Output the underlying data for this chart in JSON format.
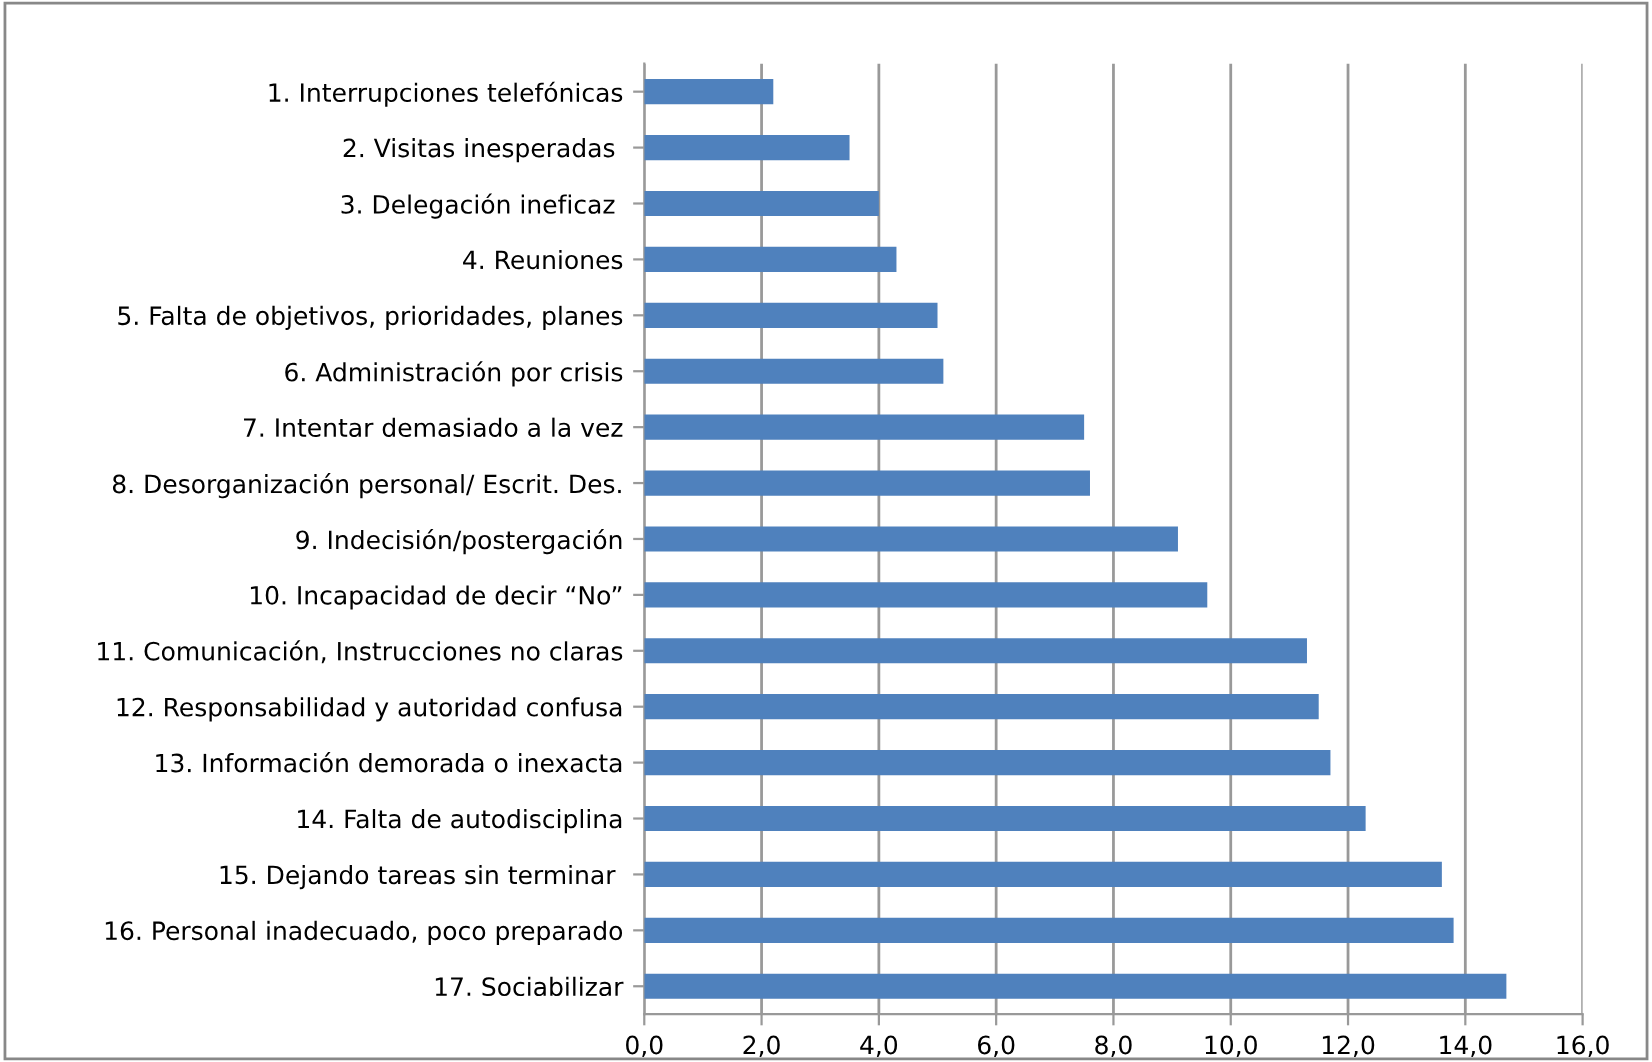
{
  "chart_data": {
    "type": "bar",
    "orientation": "horizontal",
    "categories": [
      "1. Interrupciones telefónicas",
      "2. Visitas inesperadas ",
      "3. Delegación ineficaz ",
      "4. Reuniones",
      "5. Falta de objetivos, prioridades, planes",
      "6. Administración por crisis",
      "7. Intentar demasiado a la vez",
      "8. Desorganización personal/ Escrit. Des.",
      "9. Indecisión/postergación",
      "10. Incapacidad de decir “No”",
      "11. Comunicación, Instrucciones no claras",
      "12. Responsabilidad y autoridad confusa",
      "13. Información demorada o inexacta",
      "14. Falta de autodisciplina",
      "15. Dejando tareas sin terminar ",
      "16. Personal inadecuado, poco preparado",
      "17. Sociabilizar"
    ],
    "values": [
      2.2,
      3.5,
      4.0,
      4.3,
      5.0,
      5.1,
      7.5,
      7.6,
      9.1,
      9.6,
      11.3,
      11.5,
      11.7,
      12.3,
      13.6,
      13.8,
      14.7
    ],
    "color": "#4f81bd",
    "xlim": [
      0,
      16
    ],
    "xticks": [
      {
        "value": 0,
        "label": "0,0"
      },
      {
        "value": 2,
        "label": "2,0"
      },
      {
        "value": 4,
        "label": "4,0"
      },
      {
        "value": 6,
        "label": "6,0"
      },
      {
        "value": 8,
        "label": "8,0"
      },
      {
        "value": 10,
        "label": "10,0"
      },
      {
        "value": 12,
        "label": "12,0"
      },
      {
        "value": 14,
        "label": "14,0"
      },
      {
        "value": 16,
        "label": "16,0"
      }
    ],
    "grid": "x"
  }
}
